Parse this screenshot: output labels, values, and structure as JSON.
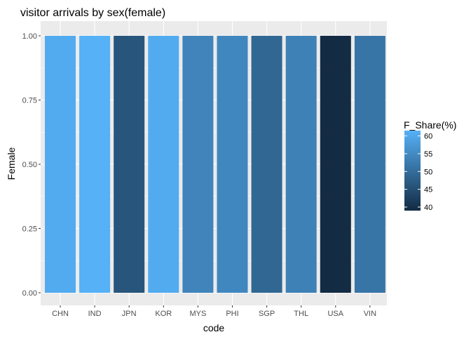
{
  "chart_data": {
    "type": "bar",
    "title": "visitor arrivals by sex(female)",
    "xlabel": "code",
    "ylabel": "Female",
    "categories": [
      "CHN",
      "IND",
      "JPN",
      "KOR",
      "MYS",
      "PHI",
      "SGP",
      "THL",
      "USA",
      "VIN"
    ],
    "values": [
      1,
      1,
      1,
      1,
      1,
      1,
      1,
      1,
      1,
      1
    ],
    "fill_values": [
      60.5,
      61.5,
      46,
      60.5,
      54,
      54.5,
      49,
      53.5,
      39,
      51.5
    ],
    "ylim": [
      0,
      1
    ],
    "yticks": [
      "0.00",
      "0.25",
      "0.50",
      "0.75",
      "1.00"
    ],
    "grid": true,
    "legend": {
      "title": "F_Share(%)",
      "position": "right",
      "ticks": [
        "40",
        "45",
        "50",
        "55",
        "60"
      ],
      "range": [
        39,
        61.5
      ]
    },
    "colors": {
      "low": "#132B43",
      "high": "#56B1F7",
      "panel": "#EBEBEB",
      "grid_major": "#FFFFFF"
    }
  }
}
